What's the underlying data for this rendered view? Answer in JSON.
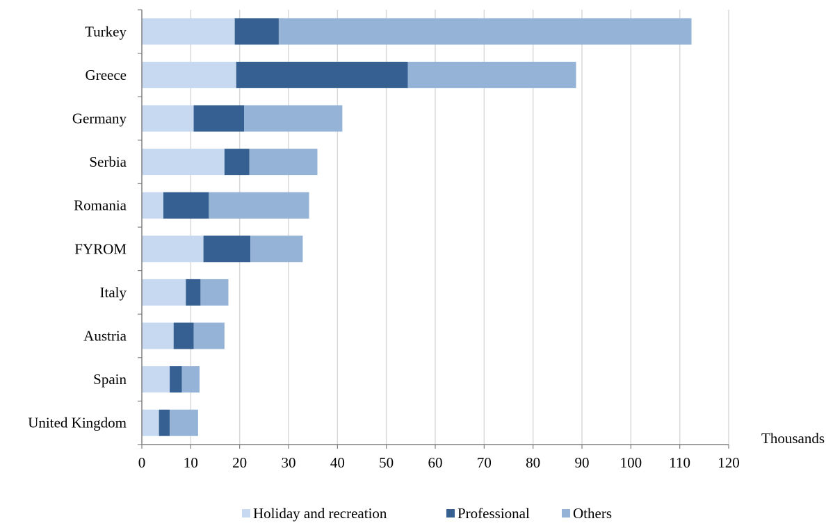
{
  "chart_data": {
    "type": "bar",
    "orientation": "horizontal",
    "stacked": true,
    "categories": [
      "Turkey",
      "Greece",
      "Germany",
      "Serbia",
      "Romania",
      "FYROM",
      "Italy",
      "Austria",
      "Spain",
      "United Kingdom"
    ],
    "series": [
      {
        "name": "Holiday and recreation",
        "color": "#c6d9f0",
        "values": [
          19.0,
          19.3,
          10.6,
          16.9,
          4.4,
          12.6,
          9.0,
          6.5,
          5.7,
          3.5
        ]
      },
      {
        "name": "Professional",
        "color": "#366092",
        "values": [
          9.0,
          35.1,
          10.3,
          5.1,
          9.3,
          9.6,
          3.0,
          4.1,
          2.5,
          2.2
        ]
      },
      {
        "name": "Others",
        "color": "#95b3d7",
        "values": [
          84.4,
          34.4,
          20.1,
          13.9,
          20.5,
          10.7,
          5.7,
          6.3,
          3.6,
          5.8
        ]
      }
    ],
    "xlim": [
      0,
      120
    ],
    "xticks": [
      "0",
      "10",
      "20",
      "30",
      "40",
      "50",
      "60",
      "70",
      "80",
      "90",
      "100",
      "110",
      "120"
    ],
    "xlabel": "Thousands",
    "grid": "vertical",
    "legend_position": "bottom"
  }
}
